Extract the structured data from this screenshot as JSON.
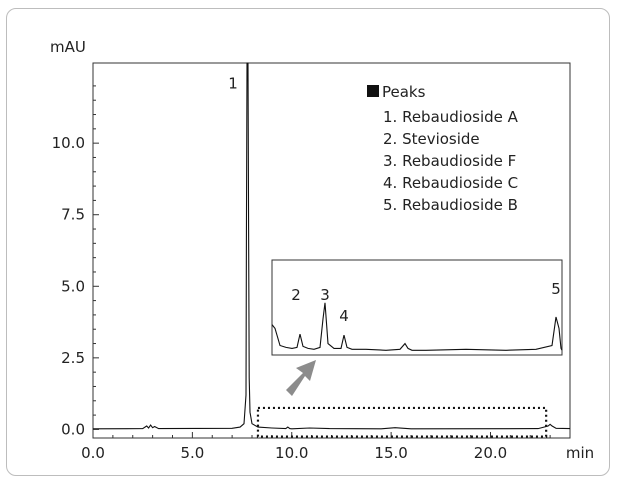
{
  "chart_data": {
    "type": "line",
    "title": "",
    "xlabel": "min",
    "ylabel": "mAU",
    "xlim": [
      0,
      24
    ],
    "ylim": [
      -0.3,
      12.8
    ],
    "x_ticks": [
      "0.0",
      "5.0",
      "10.0",
      "15.0",
      "20.0"
    ],
    "y_ticks": [
      "0.0",
      "2.5",
      "5.0",
      "7.5",
      "10.0"
    ],
    "grid": false,
    "series": [
      {
        "x": [
          0.0,
          2.5,
          2.7,
          2.8,
          2.9,
          3.0,
          3.1,
          3.3,
          7.0,
          7.4,
          7.6,
          7.7,
          7.72,
          7.75,
          7.8,
          7.83,
          7.86,
          7.9,
          8.0,
          8.3,
          9.0,
          9.7,
          9.8,
          9.9,
          10.0,
          10.9,
          11.9,
          14.5,
          15.2,
          16.0,
          22.4,
          22.9,
          23.0,
          23.1,
          23.3,
          24.0
        ],
        "y": [
          0.02,
          0.03,
          0.12,
          0.05,
          0.15,
          0.06,
          0.1,
          0.03,
          0.04,
          0.08,
          0.2,
          1.2,
          6.5,
          12.8,
          12.8,
          7.0,
          1.8,
          0.6,
          0.2,
          0.08,
          0.05,
          0.03,
          0.08,
          0.03,
          0.02,
          0.05,
          0.03,
          0.02,
          0.06,
          0.02,
          0.03,
          0.12,
          0.18,
          0.12,
          0.04,
          0.03
        ]
      }
    ],
    "peak_labels": [
      {
        "text": "1",
        "x": 7.45,
        "y": 12.4
      }
    ],
    "legend": {
      "title": "Peaks",
      "items": [
        "1. Rebaudioside A",
        "2. Stevioside",
        "3. Rebaudioside F",
        "4. Rebaudioside C",
        "5. Rebaudioside B"
      ]
    },
    "zoom_box": {
      "x": [
        8.3,
        22.8
      ],
      "y": [
        -0.25,
        0.75
      ]
    },
    "inset": {
      "xlim": [
        8.3,
        22.8
      ],
      "ylim": [
        0,
        1.0
      ],
      "series": [
        {
          "x": [
            8.3,
            8.45,
            8.7,
            9.0,
            9.3,
            9.55,
            9.7,
            9.85,
            10.1,
            10.4,
            10.7,
            10.85,
            10.95,
            11.1,
            11.4,
            11.75,
            11.9,
            12.05,
            12.3,
            13.0,
            14.0,
            14.7,
            14.95,
            15.1,
            15.3,
            16.0,
            18.0,
            20.0,
            21.5,
            22.3,
            22.5,
            22.65,
            22.75,
            22.8
          ],
          "y": [
            0.32,
            0.28,
            0.1,
            0.08,
            0.07,
            0.08,
            0.22,
            0.09,
            0.07,
            0.06,
            0.08,
            0.38,
            0.55,
            0.12,
            0.07,
            0.07,
            0.21,
            0.08,
            0.06,
            0.06,
            0.05,
            0.06,
            0.12,
            0.07,
            0.05,
            0.05,
            0.06,
            0.05,
            0.06,
            0.1,
            0.4,
            0.28,
            0.07,
            0.05
          ]
        }
      ],
      "peak_labels": [
        {
          "text": "2",
          "x": 9.5,
          "y": 0.58
        },
        {
          "text": "3",
          "x": 10.95,
          "y": 0.58
        },
        {
          "text": "4",
          "x": 11.9,
          "y": 0.36
        },
        {
          "text": "5",
          "x": 22.5,
          "y": 0.64
        }
      ]
    }
  }
}
